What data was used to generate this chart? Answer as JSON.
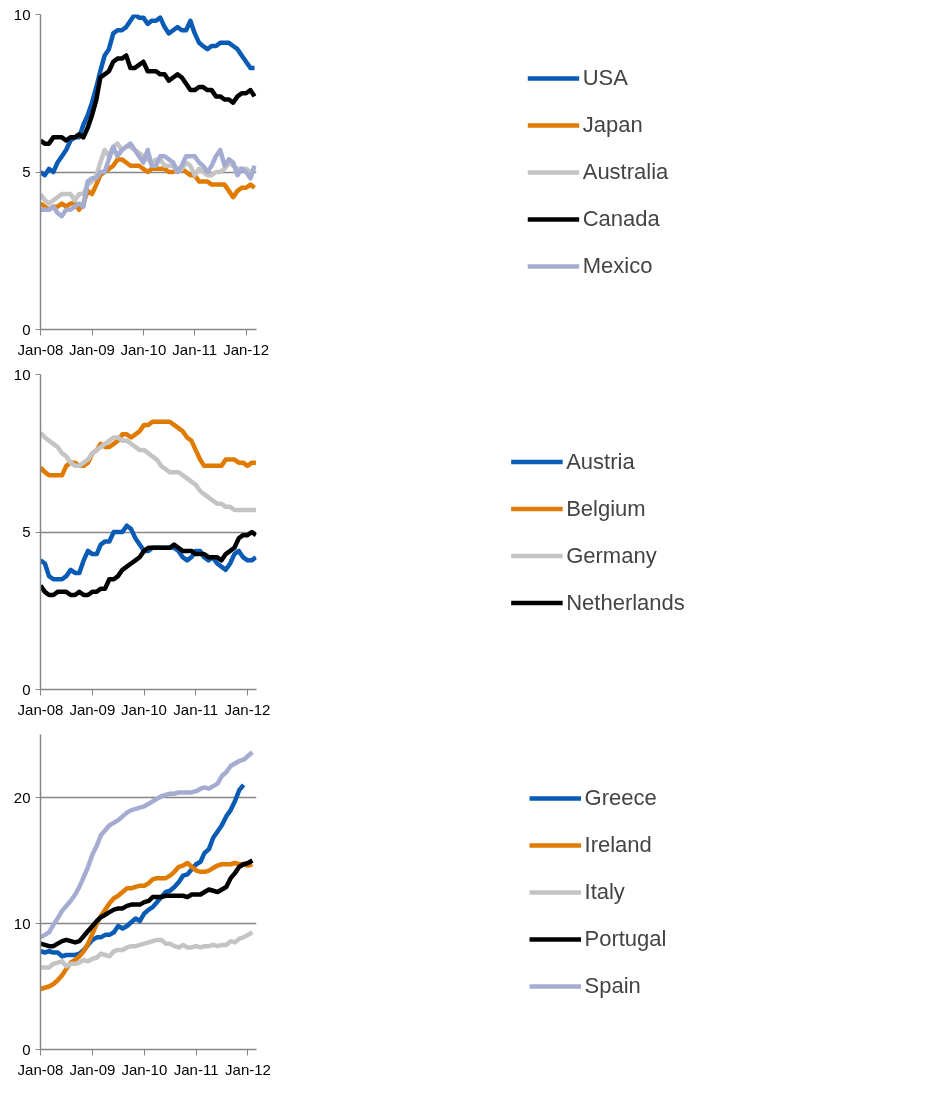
{
  "chart_data": [
    {
      "type": "line",
      "x": [
        "2008-01",
        "2008-02",
        "2008-03",
        "2008-04",
        "2008-05",
        "2008-06",
        "2008-07",
        "2008-08",
        "2008-09",
        "2008-10",
        "2008-11",
        "2008-12",
        "2009-01",
        "2009-02",
        "2009-03",
        "2009-04",
        "2009-05",
        "2009-06",
        "2009-07",
        "2009-08",
        "2009-09",
        "2009-10",
        "2009-11",
        "2009-12",
        "2010-01",
        "2010-02",
        "2010-03",
        "2010-04",
        "2010-05",
        "2010-06",
        "2010-07",
        "2010-08",
        "2010-09",
        "2010-10",
        "2010-11",
        "2010-12",
        "2011-01",
        "2011-02",
        "2011-03",
        "2011-04",
        "2011-05",
        "2011-06",
        "2011-07",
        "2011-08",
        "2011-09",
        "2011-10",
        "2011-11",
        "2011-12",
        "2012-01",
        "2012-02",
        "2012-03"
      ],
      "xlim": [
        "2008-01",
        "2012-03-15"
      ],
      "xticks": [
        {
          "value": "2008-01",
          "label": "Jan-08"
        },
        {
          "value": "2009-01",
          "label": "Jan-09"
        },
        {
          "value": "2010-01",
          "label": "Jan-10"
        },
        {
          "value": "2011-01",
          "label": "Jan-11"
        },
        {
          "value": "2012-01",
          "label": "Jan-12"
        }
      ],
      "ylim": [
        0,
        10
      ],
      "yticks": [
        0,
        5,
        10
      ],
      "grid": "y",
      "legend": "right",
      "line_style": "solid",
      "series": [
        {
          "name": "USA",
          "color": "#0a5bb5",
          "values": [
            5.0,
            4.9,
            5.1,
            5.0,
            5.3,
            5.5,
            5.7,
            6.0,
            6.1,
            6.1,
            6.5,
            6.8,
            7.2,
            7.7,
            8.2,
            8.7,
            8.9,
            9.4,
            9.5,
            9.5,
            9.6,
            9.8,
            10.0,
            9.9,
            9.9,
            9.7,
            9.8,
            9.8,
            9.9,
            9.6,
            9.4,
            9.5,
            9.6,
            9.5,
            9.5,
            9.8,
            9.4,
            9.1,
            9.0,
            8.9,
            9.0,
            9.0,
            9.1,
            9.1,
            9.1,
            9.0,
            8.9,
            8.7,
            8.5,
            8.3,
            8.3
          ]
        },
        {
          "name": "Japan",
          "color": "#e07b00",
          "values": [
            4.0,
            3.9,
            3.8,
            3.9,
            3.9,
            4.0,
            3.9,
            4.0,
            4.0,
            3.8,
            4.0,
            4.4,
            4.3,
            4.6,
            4.9,
            5.0,
            5.1,
            5.2,
            5.4,
            5.4,
            5.3,
            5.2,
            5.2,
            5.2,
            5.1,
            5.0,
            5.1,
            5.1,
            5.1,
            5.1,
            5.0,
            5.0,
            5.1,
            5.1,
            5.0,
            4.9,
            4.9,
            4.7,
            4.7,
            4.7,
            4.6,
            4.6,
            4.6,
            4.6,
            4.4,
            4.2,
            4.4,
            4.5,
            4.5,
            4.6,
            4.5
          ]
        },
        {
          "name": "Australia",
          "color": "#c4c4c4",
          "values": [
            4.3,
            4.1,
            4.0,
            4.1,
            4.2,
            4.3,
            4.3,
            4.3,
            4.1,
            4.3,
            4.3,
            4.6,
            4.7,
            4.9,
            5.3,
            5.7,
            5.5,
            5.8,
            5.9,
            5.7,
            5.8,
            5.8,
            5.7,
            5.6,
            5.5,
            5.4,
            5.3,
            5.4,
            5.4,
            5.2,
            5.2,
            5.2,
            5.0,
            5.1,
            5.3,
            5.2,
            4.9,
            5.1,
            5.0,
            4.9,
            4.9,
            5.0,
            5.0,
            5.1,
            5.3,
            5.2,
            5.1,
            5.1,
            5.1,
            5.0,
            5.1
          ]
        },
        {
          "name": "Canada",
          "color": "#000000",
          "values": [
            6.0,
            5.9,
            5.9,
            6.1,
            6.1,
            6.1,
            6.0,
            6.1,
            6.1,
            6.2,
            6.1,
            6.4,
            6.8,
            7.3,
            8.0,
            8.1,
            8.2,
            8.5,
            8.6,
            8.6,
            8.7,
            8.3,
            8.3,
            8.4,
            8.5,
            8.2,
            8.2,
            8.2,
            8.1,
            8.1,
            7.9,
            8.0,
            8.1,
            8.0,
            7.8,
            7.6,
            7.6,
            7.7,
            7.7,
            7.6,
            7.6,
            7.4,
            7.4,
            7.3,
            7.3,
            7.2,
            7.4,
            7.5,
            7.5,
            7.6,
            7.4
          ]
        },
        {
          "name": "Mexico",
          "color": "#a5acd2",
          "values": [
            3.8,
            3.8,
            3.8,
            3.9,
            3.7,
            3.6,
            3.8,
            3.8,
            3.9,
            4.0,
            3.9,
            4.7,
            4.8,
            4.8,
            5.0,
            5.0,
            5.4,
            5.8,
            5.5,
            5.7,
            5.8,
            5.9,
            5.7,
            5.5,
            5.3,
            5.7,
            5.2,
            5.2,
            5.5,
            5.5,
            5.4,
            5.3,
            5.0,
            5.2,
            5.5,
            5.5,
            5.5,
            5.3,
            5.2,
            5.0,
            5.2,
            5.5,
            5.7,
            5.2,
            5.4,
            5.3,
            4.9,
            5.1,
            5.0,
            4.8,
            5.2
          ]
        }
      ]
    },
    {
      "type": "line",
      "x": [
        "2008-01",
        "2008-02",
        "2008-03",
        "2008-04",
        "2008-05",
        "2008-06",
        "2008-07",
        "2008-08",
        "2008-09",
        "2008-10",
        "2008-11",
        "2008-12",
        "2009-01",
        "2009-02",
        "2009-03",
        "2009-04",
        "2009-05",
        "2009-06",
        "2009-07",
        "2009-08",
        "2009-09",
        "2009-10",
        "2009-11",
        "2009-12",
        "2010-01",
        "2010-02",
        "2010-03",
        "2010-04",
        "2010-05",
        "2010-06",
        "2010-07",
        "2010-08",
        "2010-09",
        "2010-10",
        "2010-11",
        "2010-12",
        "2011-01",
        "2011-02",
        "2011-03",
        "2011-04",
        "2011-05",
        "2011-06",
        "2011-07",
        "2011-08",
        "2011-09",
        "2011-10",
        "2011-11",
        "2011-12",
        "2012-01",
        "2012-02",
        "2012-03"
      ],
      "xlim": [
        "2008-01",
        "2012-03-05"
      ],
      "xticks": [
        {
          "value": "2008-01",
          "label": "Jan-08"
        },
        {
          "value": "2009-01",
          "label": "Jan-09"
        },
        {
          "value": "2010-01",
          "label": "Jan-10"
        },
        {
          "value": "2011-01",
          "label": "Jan-11"
        },
        {
          "value": "2012-01",
          "label": "Jan-12"
        }
      ],
      "ylim": [
        0,
        10
      ],
      "yticks": [
        0,
        5,
        10
      ],
      "grid": "y",
      "legend": "right",
      "line_style": "solid",
      "series": [
        {
          "name": "Austria",
          "color": "#0a5bb5",
          "values": [
            4.1,
            4.0,
            3.6,
            3.5,
            3.5,
            3.5,
            3.6,
            3.8,
            3.7,
            3.7,
            4.1,
            4.4,
            4.3,
            4.3,
            4.6,
            4.7,
            4.7,
            5.0,
            5.0,
            5.0,
            5.2,
            5.1,
            4.8,
            4.6,
            4.4,
            4.4,
            4.5,
            4.5,
            4.5,
            4.5,
            4.5,
            4.5,
            4.4,
            4.2,
            4.1,
            4.2,
            4.4,
            4.4,
            4.2,
            4.1,
            4.2,
            4.0,
            3.9,
            3.8,
            4.0,
            4.3,
            4.4,
            4.2,
            4.1,
            4.1,
            4.2
          ]
        },
        {
          "name": "Belgium",
          "color": "#e07b00",
          "values": [
            7.05,
            6.9,
            6.8,
            6.8,
            6.8,
            6.8,
            7.1,
            7.2,
            7.2,
            7.1,
            7.1,
            7.2,
            7.5,
            7.6,
            7.8,
            7.7,
            7.7,
            7.8,
            7.9,
            8.1,
            8.1,
            8.0,
            8.1,
            8.2,
            8.4,
            8.4,
            8.5,
            8.5,
            8.5,
            8.5,
            8.5,
            8.4,
            8.3,
            8.2,
            8.0,
            7.9,
            7.6,
            7.3,
            7.1,
            7.1,
            7.1,
            7.1,
            7.1,
            7.3,
            7.3,
            7.3,
            7.2,
            7.2,
            7.1,
            7.2,
            7.2
          ]
        },
        {
          "name": "Germany",
          "color": "#c4c4c4",
          "values": [
            8.15,
            8.0,
            7.9,
            7.8,
            7.7,
            7.5,
            7.4,
            7.2,
            7.1,
            7.1,
            7.2,
            7.3,
            7.5,
            7.6,
            7.7,
            7.8,
            7.9,
            8.0,
            8.0,
            7.9,
            7.9,
            7.8,
            7.7,
            7.6,
            7.6,
            7.5,
            7.4,
            7.3,
            7.1,
            7.0,
            6.9,
            6.9,
            6.9,
            6.8,
            6.7,
            6.6,
            6.5,
            6.3,
            6.2,
            6.1,
            6.0,
            5.9,
            5.9,
            5.8,
            5.8,
            5.7,
            5.7,
            5.7,
            5.7,
            5.7,
            5.7
          ]
        },
        {
          "name": "Netherlands",
          "color": "#000000",
          "values": [
            3.3,
            3.1,
            3.0,
            3.0,
            3.1,
            3.1,
            3.1,
            3.0,
            3.0,
            3.1,
            3.0,
            3.0,
            3.1,
            3.1,
            3.2,
            3.2,
            3.5,
            3.5,
            3.6,
            3.8,
            3.9,
            4.0,
            4.1,
            4.2,
            4.4,
            4.5,
            4.5,
            4.5,
            4.5,
            4.5,
            4.5,
            4.6,
            4.5,
            4.4,
            4.4,
            4.4,
            4.3,
            4.3,
            4.3,
            4.2,
            4.2,
            4.2,
            4.1,
            4.3,
            4.4,
            4.5,
            4.8,
            4.9,
            4.9,
            5.0,
            4.9
          ]
        }
      ]
    },
    {
      "type": "line",
      "x": [
        "2008-01",
        "2008-02",
        "2008-03",
        "2008-04",
        "2008-05",
        "2008-06",
        "2008-07",
        "2008-08",
        "2008-09",
        "2008-10",
        "2008-11",
        "2008-12",
        "2009-01",
        "2009-02",
        "2009-03",
        "2009-04",
        "2009-05",
        "2009-06",
        "2009-07",
        "2009-08",
        "2009-09",
        "2009-10",
        "2009-11",
        "2009-12",
        "2010-01",
        "2010-02",
        "2010-03",
        "2010-04",
        "2010-05",
        "2010-06",
        "2010-07",
        "2010-08",
        "2010-09",
        "2010-10",
        "2010-11",
        "2010-12",
        "2011-01",
        "2011-02",
        "2011-03",
        "2011-04",
        "2011-05",
        "2011-06",
        "2011-07",
        "2011-08",
        "2011-09",
        "2011-10",
        "2011-11",
        "2011-12",
        "2012-01",
        "2012-02"
      ],
      "xlim": [
        "2008-01",
        "2012-03-01"
      ],
      "xticks": [
        {
          "value": "2008-01",
          "label": "Jan-08"
        },
        {
          "value": "2009-01",
          "label": "Jan-09"
        },
        {
          "value": "2010-01",
          "label": "Jan-10"
        },
        {
          "value": "2011-01",
          "label": "Jan-11"
        },
        {
          "value": "2012-01",
          "label": "Jan-12"
        }
      ],
      "ylim": [
        0,
        25
      ],
      "yticks": [
        0,
        10,
        20
      ],
      "grid": "y",
      "legend": "right",
      "line_style": "solid",
      "series": [
        {
          "name": "Greece",
          "color": "#0a5bb5",
          "values": [
            7.8,
            7.7,
            7.8,
            7.7,
            7.7,
            7.4,
            7.5,
            7.5,
            7.5,
            7.6,
            7.9,
            8.3,
            8.7,
            8.9,
            8.9,
            9.1,
            9.1,
            9.3,
            9.8,
            9.6,
            9.8,
            10.1,
            10.4,
            10.2,
            10.8,
            11.1,
            11.3,
            11.7,
            12.1,
            12.5,
            12.6,
            12.9,
            13.3,
            13.8,
            13.9,
            14.3,
            14.7,
            14.9,
            15.6,
            15.9,
            16.8,
            17.3,
            17.8,
            18.5,
            19.0,
            19.7,
            20.6,
            21.0,
            null,
            null
          ]
        },
        {
          "name": "Ireland",
          "color": "#e07b00",
          "values": [
            4.8,
            4.9,
            5.0,
            5.2,
            5.5,
            5.9,
            6.4,
            6.9,
            7.1,
            7.4,
            7.8,
            8.4,
            9.2,
            10.0,
            10.6,
            11.1,
            11.6,
            12.0,
            12.2,
            12.5,
            12.8,
            12.8,
            12.9,
            13.0,
            13.0,
            13.2,
            13.5,
            13.6,
            13.6,
            13.6,
            13.8,
            14.1,
            14.5,
            14.6,
            14.8,
            14.5,
            14.2,
            14.1,
            14.1,
            14.2,
            14.4,
            14.6,
            14.7,
            14.7,
            14.7,
            14.8,
            14.7,
            14.7,
            14.6,
            14.7
          ]
        },
        {
          "name": "Italy",
          "color": "#c4c4c4",
          "values": [
            6.5,
            6.5,
            6.5,
            6.8,
            6.9,
            7.0,
            6.6,
            6.8,
            6.8,
            6.9,
            7.1,
            7.0,
            7.2,
            7.3,
            7.6,
            7.5,
            7.4,
            7.8,
            7.9,
            7.9,
            8.1,
            8.2,
            8.2,
            8.3,
            8.4,
            8.5,
            8.6,
            8.7,
            8.7,
            8.4,
            8.4,
            8.2,
            8.1,
            8.3,
            8.1,
            8.1,
            8.2,
            8.1,
            8.2,
            8.2,
            8.3,
            8.2,
            8.3,
            8.3,
            8.6,
            8.5,
            8.8,
            8.9,
            9.1,
            9.3
          ]
        },
        {
          "name": "Portugal",
          "color": "#000000",
          "values": [
            8.4,
            8.3,
            8.2,
            8.2,
            8.4,
            8.6,
            8.7,
            8.6,
            8.5,
            8.6,
            9.0,
            9.4,
            9.8,
            10.2,
            10.5,
            10.7,
            10.9,
            11.1,
            11.2,
            11.2,
            11.4,
            11.5,
            11.5,
            11.5,
            11.7,
            11.8,
            12.1,
            12.1,
            12.1,
            12.2,
            12.2,
            12.2,
            12.2,
            12.2,
            12.1,
            12.3,
            12.3,
            12.3,
            12.5,
            12.7,
            12.6,
            12.5,
            12.7,
            12.9,
            13.6,
            14.0,
            14.5,
            14.7,
            14.8,
            15.0
          ]
        },
        {
          "name": "Spain",
          "color": "#a5acd2",
          "values": [
            8.9,
            9.1,
            9.3,
            9.9,
            10.4,
            11.0,
            11.4,
            11.8,
            12.3,
            12.9,
            13.7,
            14.5,
            15.5,
            16.2,
            17.0,
            17.4,
            17.8,
            18.0,
            18.2,
            18.5,
            18.8,
            19.0,
            19.1,
            19.2,
            19.3,
            19.5,
            19.7,
            19.9,
            20.1,
            20.2,
            20.3,
            20.3,
            20.4,
            20.4,
            20.4,
            20.4,
            20.5,
            20.7,
            20.8,
            20.7,
            20.9,
            21.1,
            21.7,
            22.0,
            22.5,
            22.7,
            22.9,
            23.0,
            23.3,
            23.6
          ]
        }
      ]
    }
  ]
}
